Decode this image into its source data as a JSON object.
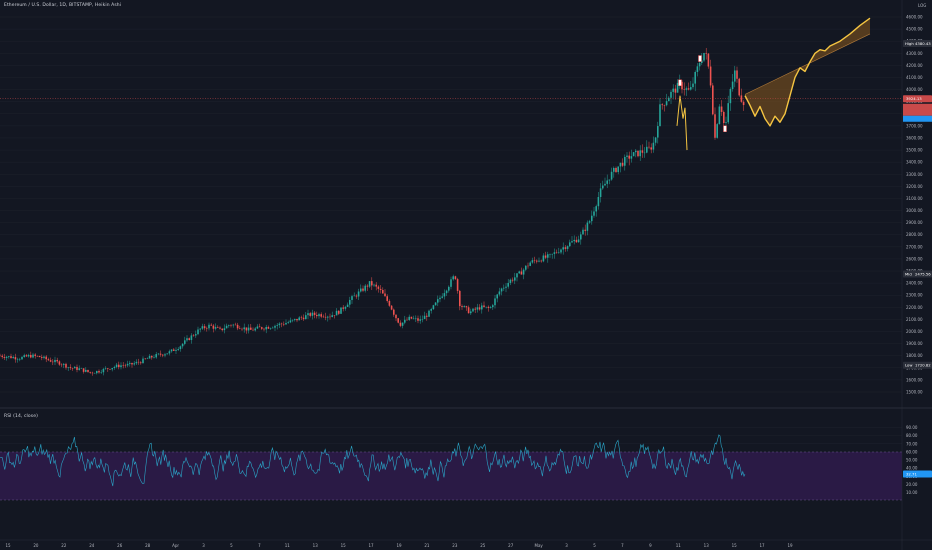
{
  "legend": {
    "main": "Ethereum / U.S. Dollar, 1D, BITSTAMP, Heikin Ashi",
    "rsi": "RSI (14, close)"
  },
  "colors": {
    "background": "#131722",
    "grid": "#1e222d",
    "up": "#26a69a",
    "down": "#ef5350",
    "projection": "#f5c542",
    "projection_fill": "#8a5a1e",
    "rsi_line": "#2aa7c9",
    "rsi_band": "#3a1f5c",
    "high_label": "#2a2e39",
    "current_label": "#c94a4a",
    "rsi_value_label": "#2196f3"
  },
  "toolbar": {
    "log_label": "LOG"
  },
  "labels": {
    "high": {
      "tag": "High",
      "value": "4380.43"
    },
    "mid": {
      "tag": "Mid",
      "value": "2475.56"
    },
    "low": {
      "tag": "Low",
      "value": "1720.82"
    },
    "current": {
      "value": "3924.13"
    },
    "rsi_value": {
      "value": "32.71"
    }
  },
  "chart_data": [
    {
      "type": "candlestick",
      "title": "Ethereum / U.S. Dollar, 1D, BITSTAMP, Heikin Ashi",
      "y_ticks": [
        4600,
        4500,
        4400,
        4300,
        4200,
        4100,
        4000,
        3900,
        3800,
        3700,
        3600,
        3500,
        3400,
        3300,
        3200,
        3100,
        3000,
        2900,
        2800,
        2700,
        2600,
        2500,
        2400,
        2300,
        2200,
        2100,
        2000,
        1900,
        1800,
        1700,
        1600,
        1500
      ],
      "x_ticks": [
        "15",
        "20",
        "22",
        "24",
        "26",
        "28",
        "Apr",
        "3",
        "5",
        "7",
        "11",
        "13",
        "15",
        "17",
        "19",
        "21",
        "23",
        "25",
        "27",
        "May",
        "3",
        "5",
        "7",
        "9",
        "11",
        "13",
        "15",
        "17",
        "19"
      ],
      "ylim": [
        1400,
        4650
      ],
      "price_path": [
        [
          0,
          1800
        ],
        [
          10,
          1790
        ],
        [
          20,
          1780
        ],
        [
          30,
          1800
        ],
        [
          40,
          1790
        ],
        [
          50,
          1760
        ],
        [
          60,
          1740
        ],
        [
          70,
          1700
        ],
        [
          80,
          1690
        ],
        [
          90,
          1660
        ],
        [
          100,
          1675
        ],
        [
          110,
          1700
        ],
        [
          120,
          1720
        ],
        [
          130,
          1725
        ],
        [
          140,
          1750
        ],
        [
          150,
          1785
        ],
        [
          160,
          1810
        ],
        [
          170,
          1830
        ],
        [
          180,
          1880
        ],
        [
          190,
          1950
        ],
        [
          200,
          2020
        ],
        [
          210,
          2050
        ],
        [
          220,
          2010
        ],
        [
          230,
          2060
        ],
        [
          240,
          2040
        ],
        [
          250,
          2010
        ],
        [
          260,
          2030
        ],
        [
          270,
          2040
        ],
        [
          280,
          2060
        ],
        [
          290,
          2080
        ],
        [
          300,
          2110
        ],
        [
          310,
          2140
        ],
        [
          320,
          2140
        ],
        [
          330,
          2130
        ],
        [
          340,
          2170
        ],
        [
          350,
          2260
        ],
        [
          360,
          2330
        ],
        [
          370,
          2400
        ],
        [
          380,
          2340
        ],
        [
          390,
          2220
        ],
        [
          395,
          2130
        ],
        [
          400,
          2060
        ],
        [
          410,
          2110
        ],
        [
          420,
          2090
        ],
        [
          430,
          2160
        ],
        [
          440,
          2280
        ],
        [
          450,
          2400
        ],
        [
          455,
          2470
        ],
        [
          460,
          2220
        ],
        [
          470,
          2160
        ],
        [
          480,
          2200
        ],
        [
          490,
          2190
        ],
        [
          500,
          2340
        ],
        [
          510,
          2420
        ],
        [
          520,
          2480
        ],
        [
          530,
          2570
        ],
        [
          540,
          2600
        ],
        [
          550,
          2620
        ],
        [
          560,
          2680
        ],
        [
          570,
          2730
        ],
        [
          580,
          2780
        ],
        [
          590,
          2920
        ],
        [
          600,
          3150
        ],
        [
          610,
          3290
        ],
        [
          620,
          3380
        ],
        [
          630,
          3450
        ],
        [
          640,
          3480
        ],
        [
          650,
          3510
        ],
        [
          655,
          3580
        ],
        [
          660,
          3850
        ],
        [
          670,
          3960
        ],
        [
          680,
          4040
        ],
        [
          690,
          3980
        ],
        [
          700,
          4240
        ],
        [
          705,
          4320
        ],
        [
          710,
          4120
        ],
        [
          715,
          3600
        ],
        [
          720,
          3920
        ],
        [
          725,
          3660
        ],
        [
          730,
          3980
        ],
        [
          735,
          4150
        ],
        [
          740,
          3950
        ],
        [
          745,
          3880
        ]
      ],
      "projection_path": [
        [
          745,
          3950
        ],
        [
          750,
          3870
        ],
        [
          755,
          3780
        ],
        [
          760,
          3860
        ],
        [
          765,
          3760
        ],
        [
          770,
          3700
        ],
        [
          775,
          3780
        ],
        [
          780,
          3730
        ],
        [
          785,
          3800
        ],
        [
          790,
          3950
        ],
        [
          795,
          4100
        ],
        [
          800,
          4180
        ],
        [
          805,
          4150
        ],
        [
          810,
          4230
        ],
        [
          815,
          4300
        ],
        [
          820,
          4330
        ],
        [
          825,
          4320
        ],
        [
          830,
          4360
        ],
        [
          840,
          4400
        ],
        [
          850,
          4460
        ],
        [
          860,
          4530
        ],
        [
          870,
          4590
        ]
      ],
      "projection_band": {
        "x_start": 745,
        "x_end": 870,
        "upper_start": 3960,
        "upper_end": 4460
      },
      "highlight_candles": [
        680,
        700,
        725
      ],
      "levels": {
        "high": 4380.43,
        "mid": 2475.56,
        "low": 1720.82,
        "current": 3924.13
      }
    },
    {
      "type": "line",
      "title": "RSI (14, close)",
      "y_ticks": [
        90,
        80,
        70,
        60,
        50,
        40,
        30,
        20,
        10
      ],
      "ylim": [
        0,
        100
      ],
      "bands": [
        70,
        30
      ],
      "last_value": 32.71
    }
  ]
}
